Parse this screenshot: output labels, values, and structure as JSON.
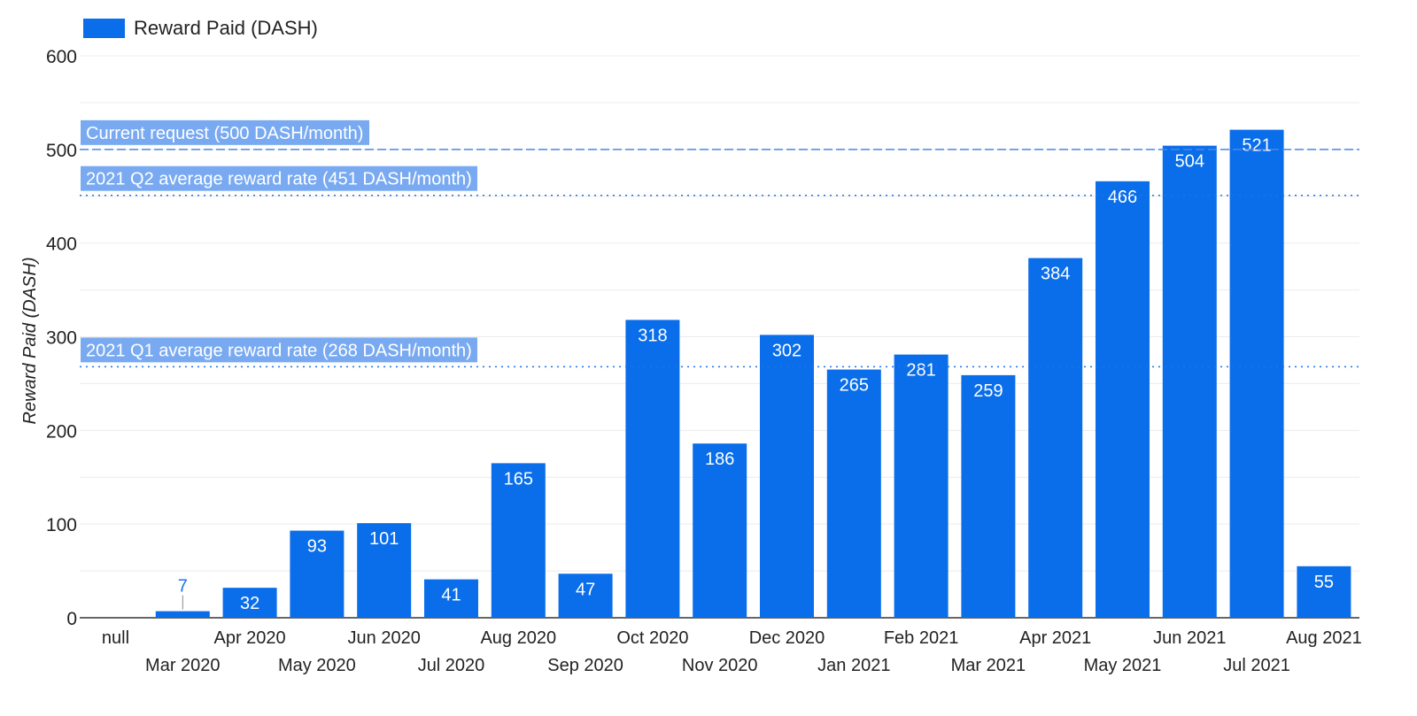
{
  "legend": {
    "label": "Reward Paid (DASH)",
    "color": "#0a6eea"
  },
  "reference_lines": [
    {
      "label": "Current request (500 DASH/month)",
      "value": 500,
      "style": "dashed"
    },
    {
      "label": "2021 Q2 average reward rate (451 DASH/month)",
      "value": 451,
      "style": "dotted"
    },
    {
      "label": "2021 Q1 average reward rate (268 DASH/month)",
      "value": 268,
      "style": "dotted"
    }
  ],
  "chart_data": {
    "type": "bar",
    "title": "",
    "xlabel": "",
    "ylabel": "Reward Paid (DASH)",
    "ylim": [
      0,
      600
    ],
    "yticks": [
      0,
      100,
      200,
      300,
      400,
      500,
      600
    ],
    "grid": true,
    "legend_position": "top-left",
    "categories": [
      "null",
      "Mar 2020",
      "Apr 2020",
      "May 2020",
      "Jun 2020",
      "Jul 2020",
      "Aug 2020",
      "Sep 2020",
      "Oct 2020",
      "Nov 2020",
      "Dec 2020",
      "Jan 2021",
      "Feb 2021",
      "Mar 2021",
      "Apr 2021",
      "May 2021",
      "Jun 2021",
      "Jul 2021",
      "Aug 2021"
    ],
    "series": [
      {
        "name": "Reward Paid (DASH)",
        "values": [
          null,
          7,
          32,
          93,
          101,
          41,
          165,
          47,
          318,
          186,
          302,
          265,
          281,
          259,
          384,
          466,
          504,
          521,
          55
        ]
      }
    ],
    "bar_color": "#0a6eea",
    "label_color_inside": "#ffffff",
    "label_color_outside": "#1a73e8"
  }
}
